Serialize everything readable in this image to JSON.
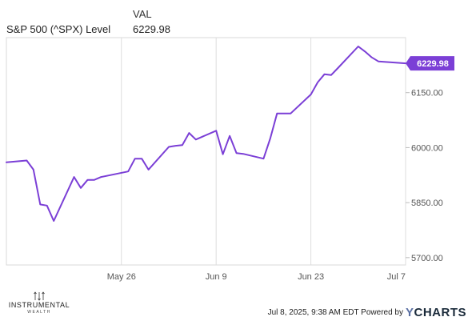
{
  "legend": {
    "column_header": "VAL",
    "series_label": "S&P 500 (^SPX) Level",
    "series_value": "6229.98"
  },
  "chart_data": {
    "type": "line",
    "series": [
      {
        "name": "S&P 500 (^SPX) Level",
        "color": "#7b3fd6",
        "x": [
          "2025-05-09",
          "2025-05-12",
          "2025-05-13",
          "2025-05-14",
          "2025-05-15",
          "2025-05-16",
          "2025-05-19",
          "2025-05-20",
          "2025-05-21",
          "2025-05-22",
          "2025-05-23",
          "2025-05-27",
          "2025-05-28",
          "2025-05-29",
          "2025-05-30",
          "2025-06-02",
          "2025-06-03",
          "2025-06-04",
          "2025-06-05",
          "2025-06-06",
          "2025-06-09",
          "2025-06-10",
          "2025-06-11",
          "2025-06-12",
          "2025-06-13",
          "2025-06-16",
          "2025-06-17",
          "2025-06-18",
          "2025-06-20",
          "2025-06-23",
          "2025-06-24",
          "2025-06-25",
          "2025-06-26",
          "2025-06-27",
          "2025-06-30",
          "2025-07-01",
          "2025-07-02",
          "2025-07-03",
          "2025-07-07"
        ],
        "values": [
          5960,
          5965,
          5940,
          5845,
          5842,
          5800,
          5920,
          5890,
          5912,
          5912,
          5920,
          5935,
          5970,
          5970,
          5940,
          6002,
          6005,
          6007,
          6040,
          6022,
          6046,
          5982,
          6032,
          5985,
          5983,
          5970,
          6025,
          6093,
          6093,
          6145,
          6178,
          6200,
          6198,
          6217,
          6276,
          6262,
          6246,
          6235,
          6229.98
        ]
      }
    ],
    "x_ticks": [
      "2025-05-26",
      "2025-06-09",
      "2025-06-23",
      "2025-07-07"
    ],
    "x_tick_labels": [
      "May 26",
      "Jun 9",
      "Jun 23",
      "Jul 7"
    ],
    "y_ticks": [
      5700,
      5850,
      6000,
      6150
    ],
    "y_tick_labels": [
      "5700.00",
      "5850.00",
      "6000.00",
      "6150.00"
    ],
    "ylim": [
      5680,
      6300
    ],
    "xlim": [
      "2025-05-09",
      "2025-07-07"
    ],
    "grid": "vertical",
    "last_value_label": "6229.98"
  },
  "branding": {
    "logo_name": "INSTRUMENTAL",
    "logo_sub": "WEALTH",
    "footer_text": "Jul 8, 2025, 9:38 AM EDT Powered by",
    "ycharts_y": "Y",
    "ycharts_rest": "CHARTS"
  }
}
